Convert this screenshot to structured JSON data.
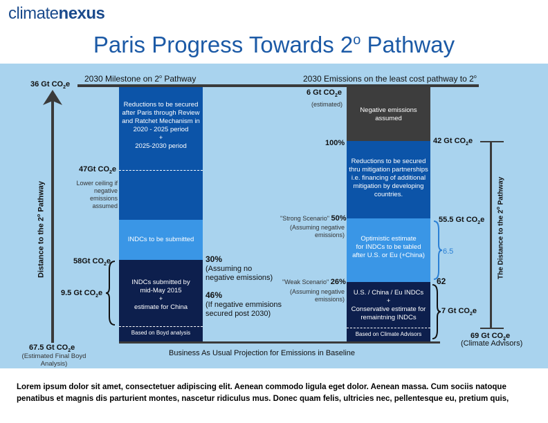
{
  "logo": {
    "prefix": "climate",
    "suffix": "nexus"
  },
  "title": {
    "main": "Paris Progress Towards 2",
    "sup": "o",
    "end": " Pathway"
  },
  "top": {
    "left_value": "36 Gt CO",
    "left_heading": "2030 Milestone on 2",
    "left_heading_end": " Pathway",
    "right_heading": "2030 Emissions on the least cost pathway to 2",
    "deg": "o"
  },
  "left_col": {
    "box1": [
      "Reductions to be secured",
      "after Paris through Review",
      "and Ratchet Mechanism in",
      "2020 - 2025 period",
      "+",
      "2025-2030 period"
    ],
    "box2": "INDCs to be submitted",
    "box3": [
      "INDCs submitted by",
      "mid-May 2015",
      "+",
      "estimate for China"
    ],
    "box4": "Based on Boyd analysis",
    "lbl_47": "47Gt CO",
    "lbl_47_note": [
      "Lower ceiling  if",
      "negative emissions",
      "assumed"
    ],
    "lbl_58": "58Gt CO",
    "lbl_95": "9.5 Gt CO",
    "pct30": "30%",
    "pct30_note": [
      "(Assuming no",
      "negative emissions)"
    ],
    "pct46": "46%",
    "pct46_note": [
      "(If negative emmisions",
      "secured post 2030)"
    ],
    "bottom_value": "67.5 Gt CO",
    "bottom_note": [
      "(Estimated Final Boyd",
      "Analysis)"
    ],
    "axis_label": "Distance to the 2",
    "axis_label_end": " Pathway"
  },
  "right_col": {
    "box1": [
      "Negative emissions",
      "assumed"
    ],
    "box2": [
      "Reductions to be secured",
      "thru mitigation partnerships",
      "i.e. financing of additional",
      "mitigation by developing",
      "countries."
    ],
    "box3": [
      "Optimistic estimate",
      "for INDCs to be tabled",
      "after U.S. or Eu (+China)"
    ],
    "box4": [
      "U.S. / China / Eu INDCs",
      "+",
      "Conservative estimate for",
      "remaintning INDCs"
    ],
    "box5": "Based on Climate Advisors",
    "lbl_6": "6 Gt CO",
    "lbl_6_note": "(estimated)",
    "lbl_100": "100%",
    "strong": "\"Strong Scenario\"",
    "strong_pct": "50%",
    "strong_note": [
      "(Assuming negative",
      "emissions)"
    ],
    "weak": "\"Weak Scenario\"",
    "weak_pct": "26%",
    "weak_note": [
      "(Assuming negative",
      "emissions)"
    ],
    "lbl_42": "42 Gt CO",
    "lbl_555": "55.5 Gt CO",
    "lbl_65": "6.5",
    "lbl_62": "62",
    "lbl_7": "7 Gt CO",
    "bottom_value": "69 Gt CO",
    "bottom_note": "(Climate Advisors)",
    "axis_label": "The Distance to the 2",
    "axis_label_end": " Pathway"
  },
  "baseline": "Business As Usual Projection for Emissions in  Baseline",
  "sub2": "2",
  "e": "e",
  "footer": "Lorem ipsum dolor sit amet, consectetuer adipiscing elit. Aenean commodo ligula eget dolor. Aenean massa. Cum sociis natoque penatibus et magnis dis parturient montes, nascetur ridiculus mus. Donec quam felis, ultricies nec, pellentesque eu, pretium quis,",
  "colors": {
    "navy": "#0d1f4d",
    "royal": "#0c54a8",
    "sky": "#3a96e6",
    "charcoal": "#3d3d3d",
    "panel": "#a9d3ee"
  }
}
